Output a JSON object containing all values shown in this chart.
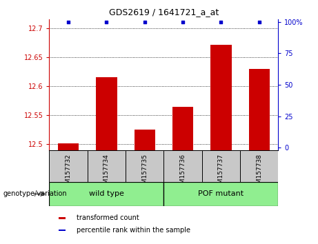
{
  "title": "GDS2619 / 1641721_a_at",
  "samples": [
    "GSM157732",
    "GSM157734",
    "GSM157735",
    "GSM157736",
    "GSM157737",
    "GSM157738"
  ],
  "transformed_counts": [
    12.502,
    12.615,
    12.525,
    12.565,
    12.672,
    12.63
  ],
  "percentile_ranks": [
    100,
    100,
    100,
    100,
    100,
    100
  ],
  "group_labels": [
    "wild type",
    "POF mutant"
  ],
  "group_ranges": [
    [
      0,
      2
    ],
    [
      3,
      5
    ]
  ],
  "group_color": "#90EE90",
  "ylim_left": [
    12.49,
    12.715
  ],
  "ylim_right": [
    -2,
    102
  ],
  "yticks_left": [
    12.5,
    12.55,
    12.6,
    12.65,
    12.7
  ],
  "yticks_right": [
    0,
    25,
    50,
    75,
    100
  ],
  "ytick_labels_left": [
    "12.5",
    "12.55",
    "12.6",
    "12.65",
    "12.7"
  ],
  "ytick_labels_right": [
    "0",
    "25",
    "50",
    "75",
    "100%"
  ],
  "bar_color": "#CC0000",
  "dot_color": "#0000CC",
  "bar_width": 0.55,
  "legend_items": [
    {
      "label": "transformed count",
      "color": "#CC0000"
    },
    {
      "label": "percentile rank within the sample",
      "color": "#0000CC"
    }
  ],
  "left_axis_color": "#CC0000",
  "right_axis_color": "#0000CC",
  "sample_box_color": "#C8C8C8",
  "baseline": 12.49
}
